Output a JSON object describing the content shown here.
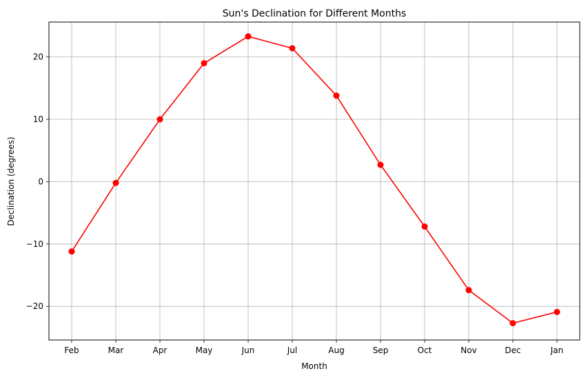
{
  "chart_data": {
    "type": "line",
    "title": "Sun's Declination for Different Months",
    "xlabel": "Month",
    "ylabel": "Declination (degrees)",
    "categories": [
      "Feb",
      "Mar",
      "Apr",
      "May",
      "Jun",
      "Jul",
      "Aug",
      "Sep",
      "Oct",
      "Nov",
      "Dec",
      "Jan"
    ],
    "series": [
      {
        "values": [
          -11.2,
          -0.2,
          10.0,
          19.0,
          23.3,
          21.4,
          13.8,
          2.7,
          -7.2,
          -17.4,
          -22.7,
          -20.9
        ],
        "color": "#ff0000",
        "marker": "circle"
      }
    ],
    "yticks": [
      -20,
      -10,
      0,
      10,
      20
    ],
    "ytick_labels": [
      "−20",
      "−10",
      "0",
      "10",
      "20"
    ],
    "ylim": [
      -25.4,
      25.6
    ],
    "grid": true
  }
}
